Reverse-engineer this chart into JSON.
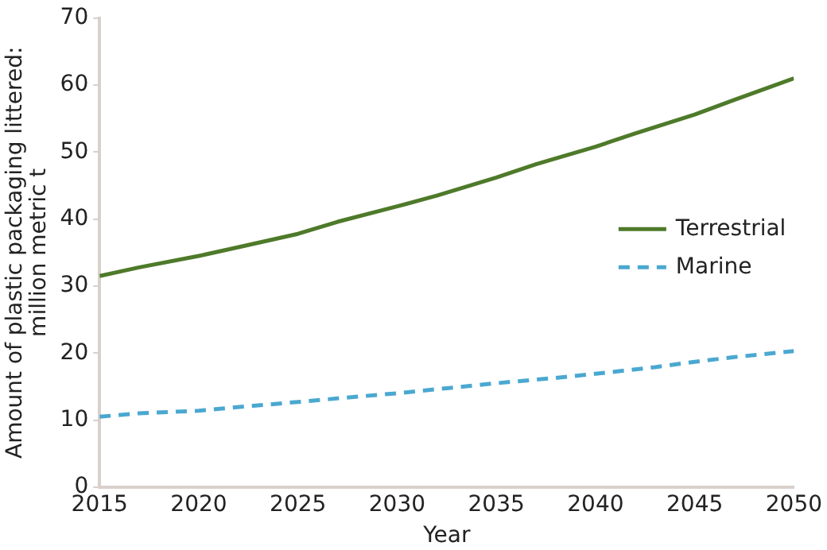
{
  "chart_data": {
    "type": "line",
    "xlabel": "Year",
    "ylabel": "Amount of plastic packaging littered: million metric t",
    "xlim": [
      2015,
      2050
    ],
    "xticks": [
      2015,
      2020,
      2025,
      2030,
      2035,
      2040,
      2045,
      2050
    ],
    "ylim": [
      0,
      70
    ],
    "yticks": [
      0,
      10,
      20,
      30,
      40,
      50,
      60,
      70
    ],
    "grid": false,
    "legend": "right",
    "marker": "none",
    "series": [
      {
        "name": "Terrestrial",
        "color": "#4e7a2a",
        "line_style": "solid",
        "x": [
          2015,
          2017,
          2020,
          2022,
          2025,
          2027,
          2030,
          2032,
          2035,
          2037,
          2040,
          2042,
          2045,
          2047,
          2050
        ],
        "values": [
          31.5,
          32.8,
          34.5,
          35.8,
          37.8,
          39.6,
          41.9,
          43.5,
          46.2,
          48.2,
          50.8,
          52.8,
          55.6,
          57.8,
          61
        ]
      },
      {
        "name": "Marine",
        "color": "#4aa8d0",
        "line_style": "dashed",
        "x": [
          2015,
          2017,
          2020,
          2023,
          2025,
          2028,
          2030,
          2033,
          2035,
          2038,
          2040,
          2043,
          2045,
          2047,
          2050
        ],
        "values": [
          10.5,
          11,
          11.4,
          12.2,
          12.7,
          13.5,
          14,
          14.9,
          15.5,
          16.3,
          16.9,
          17.9,
          18.7,
          19.4,
          20.3
        ]
      }
    ]
  }
}
